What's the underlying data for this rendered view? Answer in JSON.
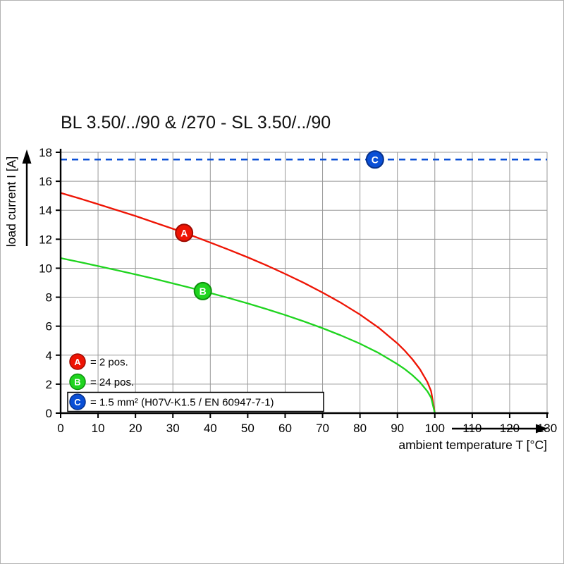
{
  "chart_data": {
    "type": "line",
    "title": "BL 3.50/../90 & /270 - SL 3.50/../90",
    "xlabel": "ambient temperature T [°C]",
    "ylabel": "load current I [A]",
    "xlim": [
      0,
      130
    ],
    "ylim": [
      0,
      18
    ],
    "xticks": [
      0,
      10,
      20,
      30,
      40,
      50,
      60,
      70,
      80,
      90,
      100,
      110,
      120,
      130
    ],
    "yticks": [
      0,
      2,
      4,
      6,
      8,
      10,
      12,
      14,
      16,
      18
    ],
    "grid": true,
    "legend_position": "bottom-left-inside",
    "series": [
      {
        "name": "A",
        "legend": "= 2 pos.",
        "color": "#ee1404",
        "stroke": "#9d0b02",
        "style": "solid",
        "boxed_legend": false,
        "marker": {
          "x": 33,
          "y": 12.44
        },
        "points": [
          [
            0,
            15.2
          ],
          [
            5,
            14.82
          ],
          [
            10,
            14.42
          ],
          [
            15,
            14.01
          ],
          [
            20,
            13.6
          ],
          [
            25,
            13.16
          ],
          [
            30,
            12.72
          ],
          [
            35,
            12.26
          ],
          [
            40,
            11.77
          ],
          [
            45,
            11.27
          ],
          [
            50,
            10.75
          ],
          [
            55,
            10.2
          ],
          [
            60,
            9.61
          ],
          [
            65,
            8.99
          ],
          [
            70,
            8.32
          ],
          [
            75,
            7.6
          ],
          [
            80,
            6.8
          ],
          [
            85,
            5.89
          ],
          [
            90,
            4.81
          ],
          [
            92,
            4.3
          ],
          [
            94,
            3.72
          ],
          [
            96,
            3.04
          ],
          [
            98,
            2.15
          ],
          [
            99,
            1.52
          ],
          [
            100,
            0
          ]
        ]
      },
      {
        "name": "B",
        "legend": "= 24 pos.",
        "color": "#1fd41f",
        "stroke": "#0c8f0c",
        "style": "solid",
        "boxed_legend": false,
        "marker": {
          "x": 38,
          "y": 8.42
        },
        "points": [
          [
            0,
            10.7
          ],
          [
            5,
            10.43
          ],
          [
            10,
            10.15
          ],
          [
            15,
            9.86
          ],
          [
            20,
            9.57
          ],
          [
            25,
            9.27
          ],
          [
            30,
            8.95
          ],
          [
            35,
            8.63
          ],
          [
            40,
            8.29
          ],
          [
            45,
            7.94
          ],
          [
            50,
            7.57
          ],
          [
            55,
            7.18
          ],
          [
            60,
            6.77
          ],
          [
            65,
            6.33
          ],
          [
            70,
            5.86
          ],
          [
            75,
            5.35
          ],
          [
            80,
            4.79
          ],
          [
            85,
            4.15
          ],
          [
            90,
            3.38
          ],
          [
            92,
            3.03
          ],
          [
            94,
            2.62
          ],
          [
            96,
            2.14
          ],
          [
            98,
            1.51
          ],
          [
            99,
            1.07
          ],
          [
            100,
            0
          ]
        ]
      },
      {
        "name": "C",
        "legend": "= 1.5 mm² (H07V-K1.5 / EN 60947-7-1)",
        "color": "#0a4fd6",
        "stroke": "#06308a",
        "style": "dashed",
        "boxed_legend": true,
        "marker": {
          "x": 84,
          "y": 17.5
        },
        "points": [
          [
            0,
            17.5
          ],
          [
            130,
            17.5
          ]
        ]
      }
    ]
  }
}
